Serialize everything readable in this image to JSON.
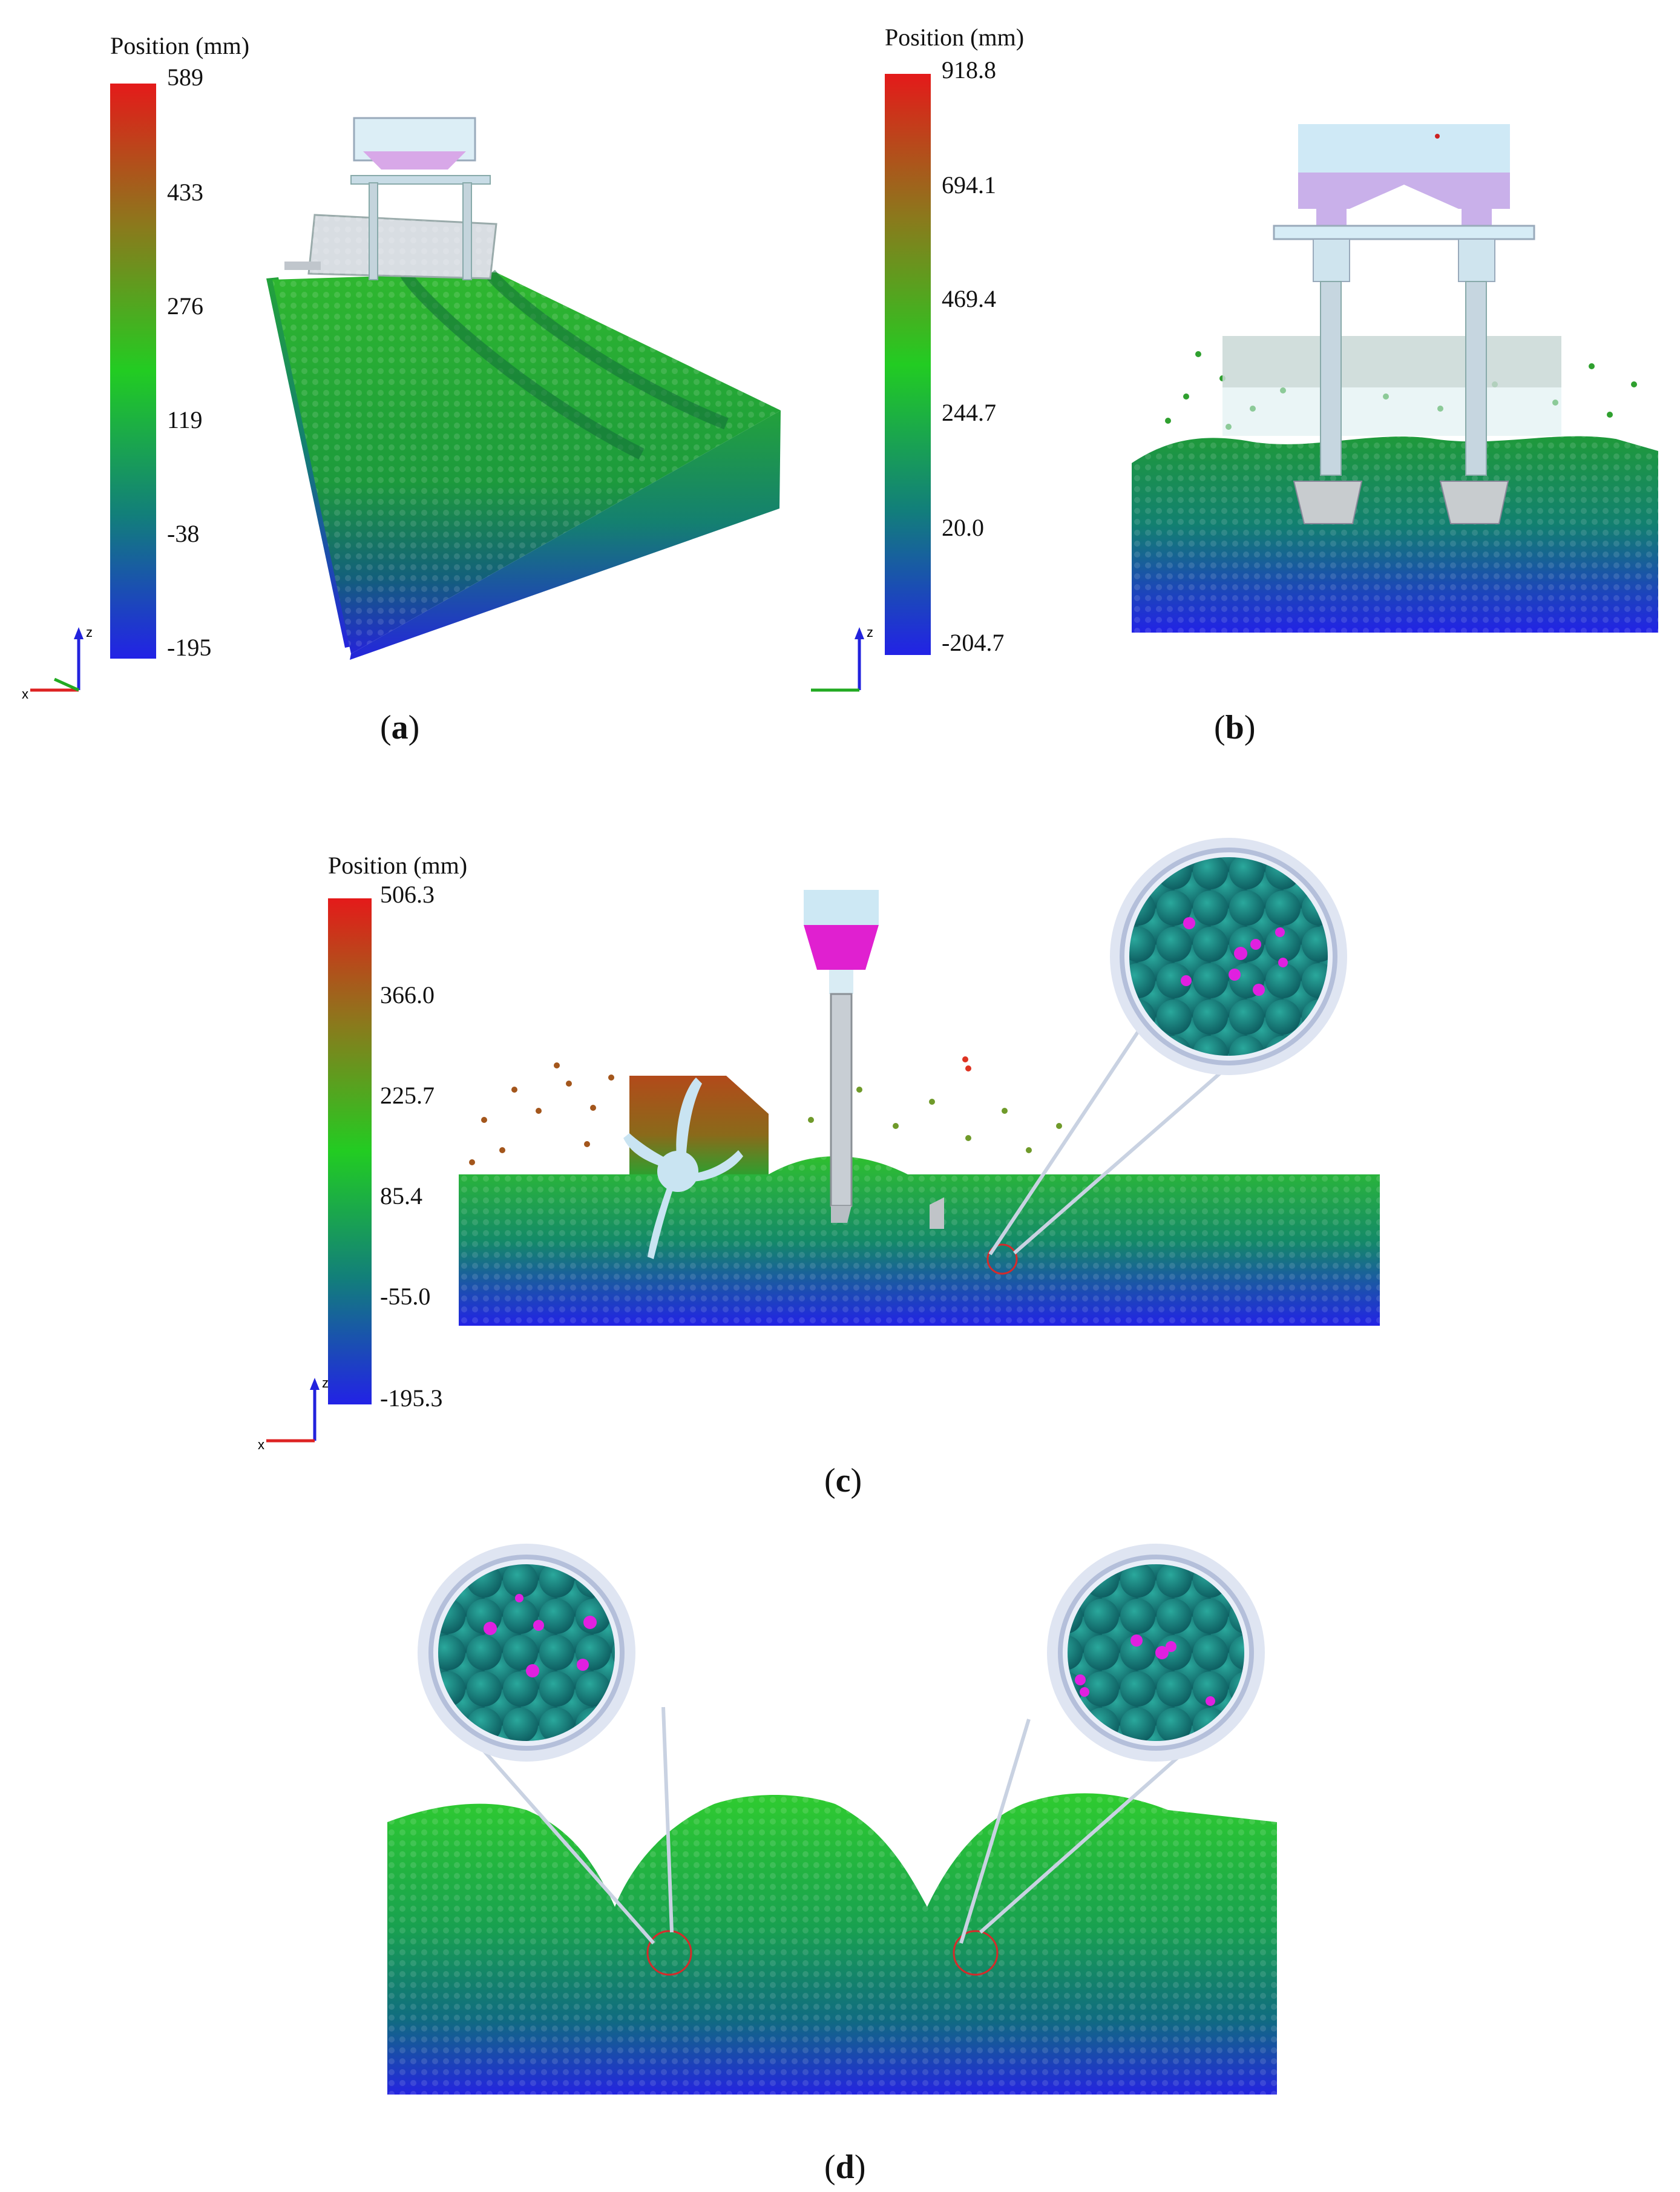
{
  "panels": {
    "a": {
      "caption": "a",
      "colorbar": {
        "title": "Position (mm)",
        "ticks": [
          "589",
          "433",
          "276",
          "119",
          "-38",
          "-195"
        ]
      }
    },
    "b": {
      "caption": "b",
      "colorbar": {
        "title": "Position (mm)",
        "ticks": [
          "918.8",
          "694.1",
          "469.4",
          "244.7",
          "20.0",
          "-204.7"
        ]
      }
    },
    "c": {
      "caption": "c",
      "colorbar": {
        "title": "Position (mm)",
        "ticks": [
          "506.3",
          "366.0",
          "225.7",
          "85.4",
          "-55.0",
          "-195.3"
        ]
      }
    },
    "d": {
      "caption": "d"
    }
  },
  "axis_labels": {
    "z": "z",
    "x": "x"
  },
  "colors": {
    "high": "#e41a1a",
    "mid_high": "#7a7a1a",
    "mid": "#2ecc2e",
    "mid_low": "#138a6e",
    "low": "#2020e0",
    "seed": "#e020e0",
    "zoom_particle": "#138a80",
    "machine": "#c8e6f4"
  }
}
